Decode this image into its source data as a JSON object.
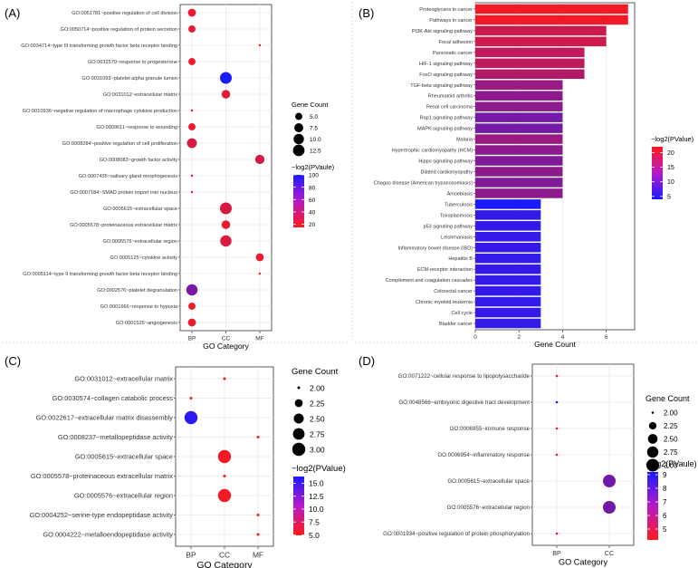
{
  "panel_labels": [
    "(A)",
    "(B)",
    "(C)",
    "(D)"
  ],
  "chart_data": [
    {
      "panel": "(A)",
      "type": "scatter",
      "xlabel": "GO Category",
      "ylabel": "",
      "categories": [
        "BP",
        "CC",
        "MF"
      ],
      "terms": [
        "GO:0051781~positive regulation of cell division",
        "GO:0050714~positive regulation of protein secretion",
        "GO:0034714~type III transforming growth factor beta receptor binding",
        "GO:0032570~response to progesterone",
        "GO:0031093~platelet alpha granule lumen",
        "GO:0031012~extracellular matrix",
        "GO:0010936~negative regulation of macrophage cytokine production",
        "GO:0009611~response to wounding",
        "GO:0008284~positive regulation of cell proliferation",
        "GO:0008083~growth factor activity",
        "GO:0007435~salivary gland morphogenesis",
        "GO:0007184~SMAD protein import into nucleus",
        "GO:0005615~extracellular space",
        "GO:0005578~proteinaceous extracellular matrix",
        "GO:0005576~extracellular region",
        "GO:0005125~cytokine activity",
        "GO:0005114~type II transforming growth factor beta receptor binding",
        "GO:0002576~platelet degranulation",
        "GO:0001666~response to hypoxia",
        "GO:0001525~angiogenesis"
      ],
      "points": [
        {
          "category": "BP",
          "gene_count": 6,
          "neglog2p": 22
        },
        {
          "category": "BP",
          "gene_count": 5,
          "neglog2p": 24
        },
        {
          "category": "MF",
          "gene_count": 2,
          "neglog2p": 18
        },
        {
          "category": "BP",
          "gene_count": 5,
          "neglog2p": 22
        },
        {
          "category": "CC",
          "gene_count": 13,
          "neglog2p": 100
        },
        {
          "category": "CC",
          "gene_count": 7,
          "neglog2p": 24
        },
        {
          "category": "BP",
          "gene_count": 2,
          "neglog2p": 22
        },
        {
          "category": "BP",
          "gene_count": 5,
          "neglog2p": 24
        },
        {
          "category": "BP",
          "gene_count": 9,
          "neglog2p": 30
        },
        {
          "category": "MF",
          "gene_count": 8,
          "neglog2p": 32
        },
        {
          "category": "BP",
          "gene_count": 2,
          "neglog2p": 20
        },
        {
          "category": "BP",
          "gene_count": 2,
          "neglog2p": 20
        },
        {
          "category": "CC",
          "gene_count": 13,
          "neglog2p": 30
        },
        {
          "category": "CC",
          "gene_count": 7,
          "neglog2p": 22
        },
        {
          "category": "CC",
          "gene_count": 12,
          "neglog2p": 30
        },
        {
          "category": "MF",
          "gene_count": 6,
          "neglog2p": 22
        },
        {
          "category": "MF",
          "gene_count": 2,
          "neglog2p": 18
        },
        {
          "category": "BP",
          "gene_count": 12,
          "neglog2p": 65
        },
        {
          "category": "BP",
          "gene_count": 5,
          "neglog2p": 22
        },
        {
          "category": "BP",
          "gene_count": 6,
          "neglog2p": 22
        }
      ],
      "size_legend": {
        "title": "Gene Count",
        "values": [
          5.0,
          7.5,
          10.0,
          12.5
        ],
        "labels": [
          "5.0",
          "7.5",
          "10.0",
          "12.5"
        ]
      },
      "color_legend": {
        "title": "−log2(PVaule)",
        "range": [
          15,
          100
        ],
        "ticks": [
          20,
          40,
          60,
          80,
          100
        ]
      },
      "size_range": [
        2,
        13
      ]
    },
    {
      "panel": "(B)",
      "type": "bar",
      "orientation": "horizontal",
      "xlabel": "Gene Count",
      "xlim": [
        0,
        7.3
      ],
      "xticks": [
        0,
        2,
        4,
        6
      ],
      "categories": [
        "Proteoglycans in cancer",
        "Pathways in cancer",
        "PI3K-Akt signaling pathway",
        "Focal adhesion",
        "Pancreatic cancer",
        "HIF-1 signaling pathway",
        "FoxO signaling pathway",
        "TGF-beta signaling pathway",
        "Rheumatoid arthritis",
        "Renal cell carcinoma",
        "Rap1 signaling pathway",
        "MAPK signaling pathway",
        "Malaria",
        "Hypertrophic cardiomyopathy (HCM)",
        "Hippo signaling pathway",
        "Dilated cardiomyopathy",
        "Chagas disease (American trypanosomiasis)",
        "Amoebiasis",
        "Tuberculosis",
        "Toxoplasmosis",
        "p53 signaling pathway",
        "Leishmaniasis",
        "Inflammatory bowel disease (IBD)",
        "Hepatitis B",
        "ECM-receptor interaction",
        "Complement and coagulation cascades",
        "Colorectal cancer",
        "Chronic myeloid leukemia",
        "Cell cycle",
        "Bladder cancer"
      ],
      "values": [
        7,
        7,
        6,
        6,
        5,
        5,
        5,
        4,
        4,
        4,
        4,
        4,
        4,
        4,
        4,
        4,
        4,
        4,
        3,
        3,
        3,
        3,
        3,
        3,
        3,
        3,
        3,
        3,
        3,
        3
      ],
      "neglog2p": [
        21,
        21,
        18,
        18,
        17,
        17,
        16,
        14,
        13,
        13,
        11,
        11,
        14,
        13,
        12,
        13,
        12,
        13,
        4,
        6,
        6,
        6,
        6,
        6,
        6,
        6,
        6,
        6,
        6,
        6
      ],
      "color_legend": {
        "title": "−log2(PValue)",
        "range": [
          4,
          22
        ],
        "ticks": [
          5,
          10,
          15,
          20
        ]
      }
    },
    {
      "panel": "(C)",
      "type": "scatter",
      "xlabel": "GO Category",
      "ylabel": "",
      "categories": [
        "BP",
        "CC",
        "MF"
      ],
      "terms": [
        "GO:0031012~extracellular matrix",
        "GO:0030574~collagen catabolic process",
        "GO:0022617~extracellular matrix disassembly",
        "GO:0008237~metallopeptidase activity",
        "GO:0005615~extracellular space",
        "GO:0005578~proteinaceous extracellular matrix",
        "GO:0005576~extracellular region",
        "GO:0004252~serine-type endopeptidase activity",
        "GO:0004222~metalloendopeptidase activity"
      ],
      "points": [
        {
          "category": "CC",
          "gene_count": 2,
          "neglog2p": 5.5
        },
        {
          "category": "BP",
          "gene_count": 2,
          "neglog2p": 5.5
        },
        {
          "category": "BP",
          "gene_count": 3,
          "neglog2p": 15.5
        },
        {
          "category": "MF",
          "gene_count": 2,
          "neglog2p": 5.2
        },
        {
          "category": "CC",
          "gene_count": 3,
          "neglog2p": 5.5
        },
        {
          "category": "CC",
          "gene_count": 2,
          "neglog2p": 5.5
        },
        {
          "category": "CC",
          "gene_count": 3,
          "neglog2p": 5.5
        },
        {
          "category": "MF",
          "gene_count": 2,
          "neglog2p": 5.5
        },
        {
          "category": "MF",
          "gene_count": 2,
          "neglog2p": 5.2
        }
      ],
      "size_legend": {
        "title": "Gene Count",
        "values": [
          2.0,
          2.25,
          2.5,
          2.75,
          3.0
        ],
        "labels": [
          "2.00",
          "2.25",
          "2.50",
          "2.75",
          "3.00"
        ]
      },
      "color_legend": {
        "title": "−log2(PValue)",
        "range": [
          4.9,
          16.3
        ],
        "ticks": [
          5.0,
          7.5,
          10.0,
          12.5,
          15.0
        ],
        "tick_labels": [
          "5.0",
          "7.5",
          "10.0",
          "12.5",
          "15.0"
        ]
      },
      "size_range": [
        2,
        3
      ]
    },
    {
      "panel": "(D)",
      "type": "scatter",
      "xlabel": "GO Category",
      "ylabel": "",
      "categories": [
        "BP",
        "CC"
      ],
      "terms": [
        "GO:0071222~cellular response to lipopolysaccharide",
        "GO:0048566~embryonic digestive tract development",
        "GO:0006955~immune response",
        "GO:0006954~inflammatory response",
        "GO:0005615~extracellular space",
        "GO:0005576~extracellular region",
        "GO:0001934~positive regulation of protein phosphorylation"
      ],
      "points": [
        {
          "category": "BP",
          "gene_count": 2,
          "neglog2p": 5
        },
        {
          "category": "BP",
          "gene_count": 2,
          "neglog2p": 9
        },
        {
          "category": "BP",
          "gene_count": 2,
          "neglog2p": 4.8
        },
        {
          "category": "BP",
          "gene_count": 2,
          "neglog2p": 5
        },
        {
          "category": "CC",
          "gene_count": 3,
          "neglog2p": 7.3
        },
        {
          "category": "CC",
          "gene_count": 3,
          "neglog2p": 7.3
        },
        {
          "category": "BP",
          "gene_count": 2,
          "neglog2p": 4.8
        }
      ],
      "size_legend": {
        "title": "Gene Count",
        "values": [
          2.0,
          2.25,
          2.5,
          2.75,
          3.0
        ],
        "labels": [
          "2.00",
          "2.25",
          "2.50",
          "2.75",
          "3.00"
        ]
      },
      "color_legend": {
        "title": "−log2(PVaule)",
        "range": [
          4.2,
          9.2
        ],
        "ticks": [
          5,
          6,
          7,
          8,
          9
        ]
      },
      "size_range": [
        2,
        3
      ]
    }
  ]
}
